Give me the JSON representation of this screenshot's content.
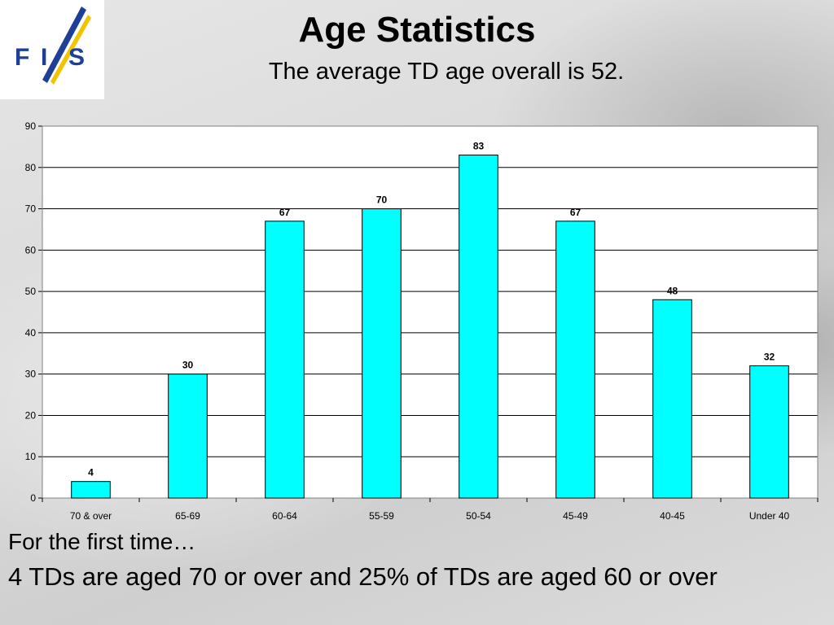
{
  "slide": {
    "title": "Age Statistics",
    "subtitle": "The average TD age overall is 52.",
    "logo_text": "FIS",
    "footnote_line1": "For the first time…",
    "footnote_line2": "4 TDs are aged 70 or over and 25% of TDs are aged 60 or over"
  },
  "colors": {
    "bar_fill": "#00FFFF",
    "bar_stroke": "#000000",
    "plot_bg": "#FFFFFF",
    "logo_blue": "#1d3f95",
    "logo_yellow": "#f2c400"
  },
  "chart_data": {
    "type": "bar",
    "title": "",
    "xlabel": "",
    "ylabel": "",
    "categories": [
      "70 & over",
      "65-69",
      "60-64",
      "55-59",
      "50-54",
      "45-49",
      "40-45",
      "Under 40"
    ],
    "values": [
      4,
      30,
      67,
      70,
      83,
      67,
      48,
      32
    ],
    "ylim": [
      0,
      90
    ],
    "yticks": [
      0,
      10,
      20,
      30,
      40,
      50,
      60,
      70,
      80,
      90
    ],
    "grid": true,
    "legend": "none",
    "data_labels": true
  }
}
